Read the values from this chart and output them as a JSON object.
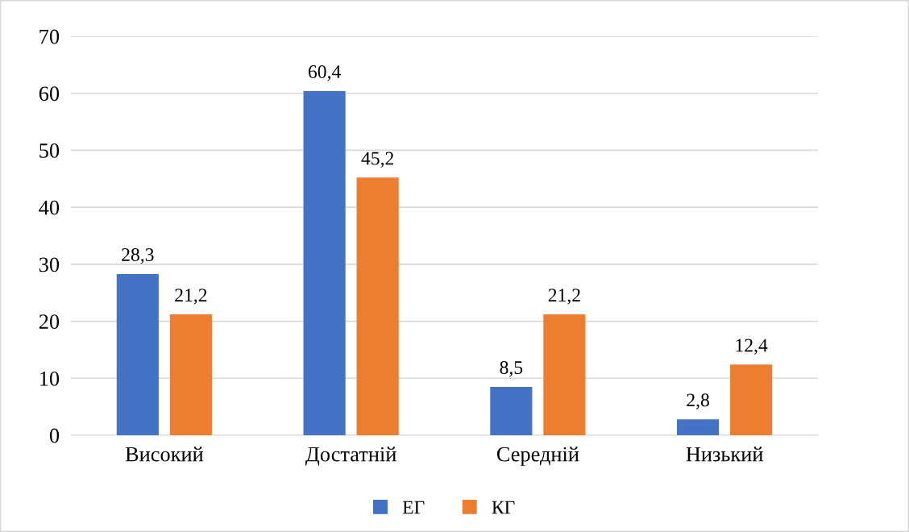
{
  "chart_data": {
    "type": "bar",
    "categories": [
      "Високий",
      "Достатній",
      "Середній",
      "Низький"
    ],
    "series": [
      {
        "name": "ЕГ",
        "color": "#4472c4",
        "values": [
          28.3,
          60.4,
          8.5,
          2.8
        ],
        "value_labels": [
          "28,3",
          "60,4",
          "8,5",
          "2,8"
        ]
      },
      {
        "name": "КГ",
        "color": "#ed7d31",
        "values": [
          21.2,
          45.2,
          21.2,
          12.4
        ],
        "value_labels": [
          "21,2",
          "45,2",
          "21,2",
          "12,4"
        ]
      }
    ],
    "ylim": [
      0,
      70
    ],
    "yticks": [
      0,
      10,
      20,
      30,
      40,
      50,
      60,
      70
    ],
    "grid": "y",
    "legend": "bottom"
  }
}
